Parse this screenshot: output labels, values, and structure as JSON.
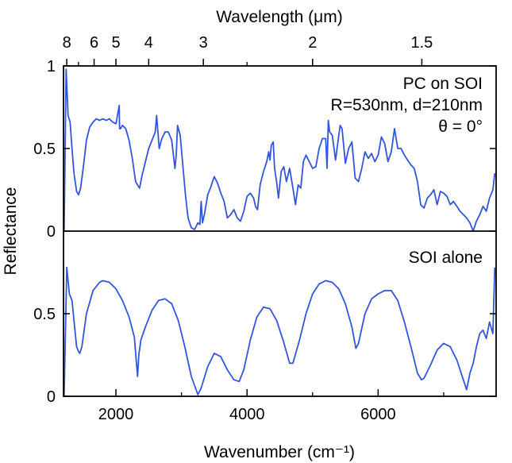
{
  "chart_data": [
    {
      "type": "line",
      "panel": "top",
      "annotation_lines": [
        "PC on SOI",
        "R=530nm, d=210nm",
        "θ = 0°"
      ],
      "ylabel": "Reflectance",
      "ylim": [
        0,
        1
      ],
      "y_ticks": [
        0,
        0.5,
        1
      ],
      "y_tick_labels": [
        "0",
        "0.5",
        "1"
      ],
      "xlim": [
        1200,
        7800
      ],
      "series": [
        {
          "name": "PC on SOI",
          "color": "#3355dd",
          "x": [
            1210,
            1240,
            1270,
            1300,
            1330,
            1360,
            1400,
            1430,
            1460,
            1500,
            1550,
            1600,
            1650,
            1700,
            1750,
            1800,
            1850,
            1900,
            1950,
            2000,
            2050,
            2055,
            2070,
            2100,
            2150,
            2200,
            2250,
            2300,
            2330,
            2360,
            2400,
            2450,
            2500,
            2550,
            2600,
            2620,
            2640,
            2660,
            2700,
            2750,
            2800,
            2850,
            2900,
            2920,
            2940,
            2980,
            3020,
            3060,
            3100,
            3150,
            3200,
            3250,
            3280,
            3300,
            3320,
            3350,
            3400,
            3450,
            3500,
            3550,
            3600,
            3650,
            3700,
            3750,
            3800,
            3850,
            3900,
            3950,
            4000,
            4050,
            4100,
            4130,
            4160,
            4200,
            4250,
            4300,
            4330,
            4350,
            4370,
            4400,
            4420,
            4450,
            4480,
            4520,
            4560,
            4600,
            4650,
            4700,
            4740,
            4780,
            4820,
            4860,
            4900,
            4950,
            5000,
            5050,
            5100,
            5150,
            5200,
            5220,
            5240,
            5260,
            5300,
            5350,
            5400,
            5420,
            5450,
            5500,
            5550,
            5600,
            5650,
            5700,
            5750,
            5800,
            5850,
            5900,
            5950,
            6000,
            6050,
            6100,
            6150,
            6200,
            6250,
            6300,
            6350,
            6400,
            6450,
            6500,
            6550,
            6600,
            6650,
            6700,
            6750,
            6800,
            6850,
            6900,
            6950,
            7000,
            7050,
            7100,
            7150,
            7200,
            7250,
            7300,
            7350,
            7400,
            7450,
            7500,
            7550,
            7600,
            7650,
            7700,
            7750,
            7780
          ],
          "y": [
            0.0,
            0.98,
            0.7,
            0.66,
            0.5,
            0.35,
            0.24,
            0.22,
            0.26,
            0.38,
            0.55,
            0.63,
            0.66,
            0.68,
            0.67,
            0.68,
            0.67,
            0.68,
            0.66,
            0.65,
            0.76,
            0.62,
            0.62,
            0.64,
            0.62,
            0.55,
            0.44,
            0.3,
            0.28,
            0.26,
            0.34,
            0.42,
            0.5,
            0.55,
            0.6,
            0.7,
            0.6,
            0.5,
            0.56,
            0.6,
            0.6,
            0.55,
            0.38,
            0.46,
            0.64,
            0.58,
            0.4,
            0.22,
            0.08,
            0.02,
            0.01,
            0.05,
            0.04,
            0.18,
            0.05,
            0.1,
            0.22,
            0.27,
            0.33,
            0.29,
            0.23,
            0.18,
            0.08,
            0.1,
            0.13,
            0.08,
            0.06,
            0.12,
            0.21,
            0.23,
            0.2,
            0.15,
            0.13,
            0.28,
            0.36,
            0.42,
            0.48,
            0.43,
            0.52,
            0.54,
            0.38,
            0.3,
            0.2,
            0.36,
            0.39,
            0.3,
            0.38,
            0.26,
            0.16,
            0.28,
            0.26,
            0.42,
            0.46,
            0.42,
            0.38,
            0.39,
            0.5,
            0.56,
            0.56,
            0.38,
            0.67,
            0.6,
            0.58,
            0.43,
            0.58,
            0.64,
            0.62,
            0.41,
            0.5,
            0.54,
            0.32,
            0.3,
            0.38,
            0.48,
            0.44,
            0.47,
            0.42,
            0.46,
            0.57,
            0.53,
            0.42,
            0.48,
            0.62,
            0.5,
            0.5,
            0.46,
            0.43,
            0.4,
            0.38,
            0.3,
            0.16,
            0.14,
            0.2,
            0.22,
            0.25,
            0.16,
            0.24,
            0.23,
            0.21,
            0.16,
            0.18,
            0.15,
            0.12,
            0.1,
            0.08,
            0.05,
            0.0,
            0.06,
            0.1,
            0.15,
            0.12,
            0.2,
            0.25,
            0.35
          ]
        }
      ]
    },
    {
      "type": "line",
      "panel": "bottom",
      "annotation_lines": [
        "SOI alone"
      ],
      "ylabel": "Reflectance",
      "xlabel": "Wavenumber (cm⁻¹)",
      "ylim": [
        0,
        1
      ],
      "y_ticks": [
        0,
        0.5
      ],
      "y_tick_labels": [
        "0",
        "0.5"
      ],
      "xlim": [
        1200,
        7800
      ],
      "x_ticks": [
        2000,
        4000,
        6000
      ],
      "x_tick_labels": [
        "2000",
        "4000",
        "6000"
      ],
      "series": [
        {
          "name": "SOI alone",
          "color": "#3355dd",
          "x": [
            1210,
            1250,
            1290,
            1330,
            1370,
            1400,
            1430,
            1450,
            1480,
            1550,
            1650,
            1750,
            1800,
            1900,
            2000,
            2100,
            2200,
            2280,
            2330,
            2350,
            2360,
            2380,
            2450,
            2550,
            2650,
            2750,
            2850,
            2950,
            3050,
            3150,
            3250,
            3300,
            3400,
            3500,
            3600,
            3700,
            3800,
            3880,
            3950,
            4050,
            4150,
            4250,
            4350,
            4450,
            4550,
            4650,
            4700,
            4800,
            4900,
            5000,
            5100,
            5200,
            5300,
            5400,
            5500,
            5600,
            5660,
            5700,
            5800,
            5900,
            6000,
            6100,
            6200,
            6300,
            6400,
            6500,
            6600,
            6660,
            6700,
            6800,
            6900,
            7000,
            7100,
            7200,
            7300,
            7350,
            7400,
            7450,
            7500,
            7550,
            7600,
            7650,
            7700,
            7750,
            7780
          ],
          "y": [
            0.0,
            0.78,
            0.62,
            0.58,
            0.42,
            0.3,
            0.27,
            0.26,
            0.3,
            0.5,
            0.64,
            0.69,
            0.7,
            0.69,
            0.65,
            0.58,
            0.48,
            0.36,
            0.12,
            0.26,
            0.28,
            0.34,
            0.42,
            0.52,
            0.58,
            0.59,
            0.56,
            0.46,
            0.3,
            0.12,
            0.01,
            0.05,
            0.18,
            0.26,
            0.24,
            0.16,
            0.1,
            0.09,
            0.16,
            0.34,
            0.48,
            0.54,
            0.53,
            0.46,
            0.34,
            0.2,
            0.2,
            0.34,
            0.5,
            0.62,
            0.68,
            0.7,
            0.69,
            0.65,
            0.56,
            0.42,
            0.29,
            0.32,
            0.5,
            0.59,
            0.62,
            0.64,
            0.64,
            0.58,
            0.45,
            0.3,
            0.14,
            0.1,
            0.11,
            0.19,
            0.28,
            0.32,
            0.3,
            0.22,
            0.1,
            0.04,
            0.14,
            0.2,
            0.3,
            0.38,
            0.4,
            0.35,
            0.45,
            0.38,
            0.78
          ]
        }
      ]
    },
    {
      "type": "axis",
      "panel": "top-axis",
      "xlabel": "Wavelength (μm)",
      "tick_wavelengths": [
        8,
        6,
        5,
        4,
        3,
        2,
        1.5
      ],
      "tick_labels": [
        "8",
        "6",
        "5",
        "4",
        "3",
        "2",
        "1.5"
      ],
      "minor_wavelengths": [
        7,
        2.5
      ]
    }
  ]
}
